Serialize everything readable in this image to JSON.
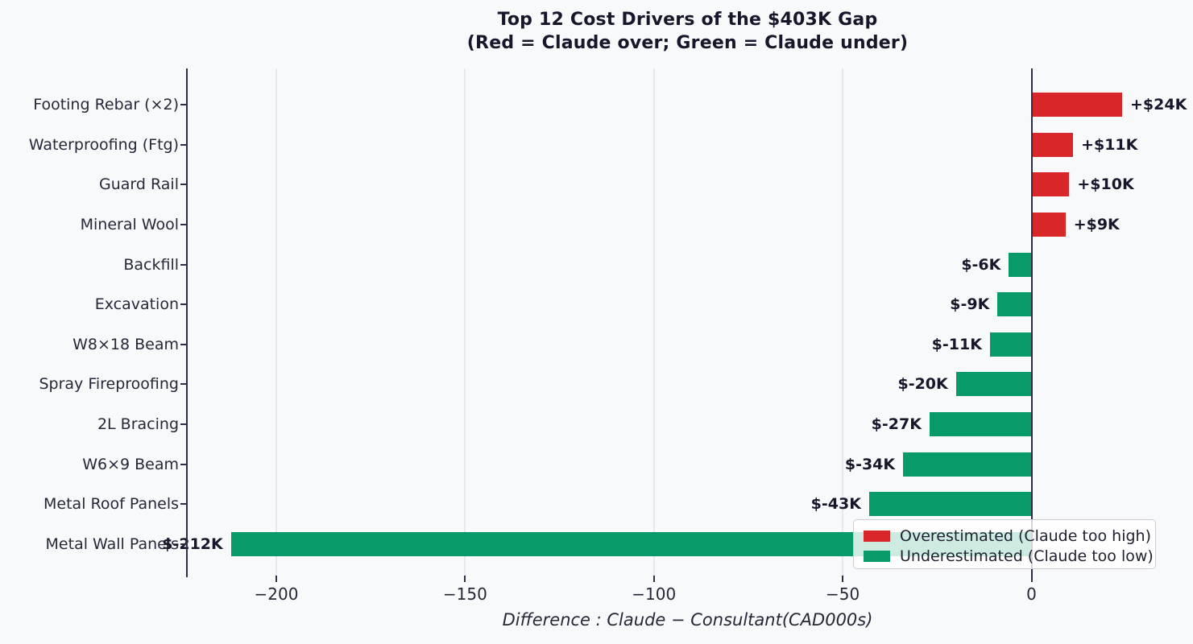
{
  "title": {
    "line1": "Top 12 Cost Drivers of the $403K Gap",
    "line2": "(Red = Claude over; Green = Claude under)"
  },
  "axis": {
    "xlabel": "Difference : Claude − Consultant(CAD000s)",
    "xticks": [
      {
        "value": -200,
        "label": "−200"
      },
      {
        "value": -150,
        "label": "−150"
      },
      {
        "value": -100,
        "label": "−100"
      },
      {
        "value": -50,
        "label": "−50"
      },
      {
        "value": 0,
        "label": "0"
      }
    ]
  },
  "colors": {
    "overestimated_red": "#d92629",
    "underestimated_green": "#089a68",
    "grid": "#e7e7ec",
    "axis_line": "#2d3044",
    "text_dark": "#16172b",
    "background": "#f8f9fb"
  },
  "legend": {
    "items": [
      {
        "label": "Overestimated (Claude too high)",
        "color": "#d92629"
      },
      {
        "label": "Underestimated (Claude too low)",
        "color": "#089a68"
      }
    ]
  },
  "chart_data": {
    "type": "bar",
    "orientation": "horizontal",
    "title": "Top 12 Cost Drivers of the $403K Gap (Red = Claude over; Green = Claude under)",
    "xlabel": "Difference : Claude − Consultant(CAD000s)",
    "xlim": [
      -224,
      41
    ],
    "grid": "vertical-only",
    "legend_position": "lower right",
    "categories": [
      "Footing Rebar (×2)",
      "Waterproofing (Ftg)",
      "Guard Rail",
      "Mineral Wool",
      "Backfill",
      "Excavation",
      "W8×18 Beam",
      "Spray Fireproofing",
      "2L Bracing",
      "W6×9 Beam",
      "Metal Roof Panels",
      "Metal Wall Panels"
    ],
    "values": [
      24,
      11,
      10,
      9,
      -6,
      -9,
      -11,
      -20,
      -27,
      -34,
      -43,
      -212
    ],
    "value_labels": [
      "+$24K",
      "+$11K",
      "+$10K",
      "+$9K",
      "$-6K",
      "$-9K",
      "$-11K",
      "$-20K",
      "$-27K",
      "$-34K",
      "$-43K",
      "$-212K"
    ]
  }
}
